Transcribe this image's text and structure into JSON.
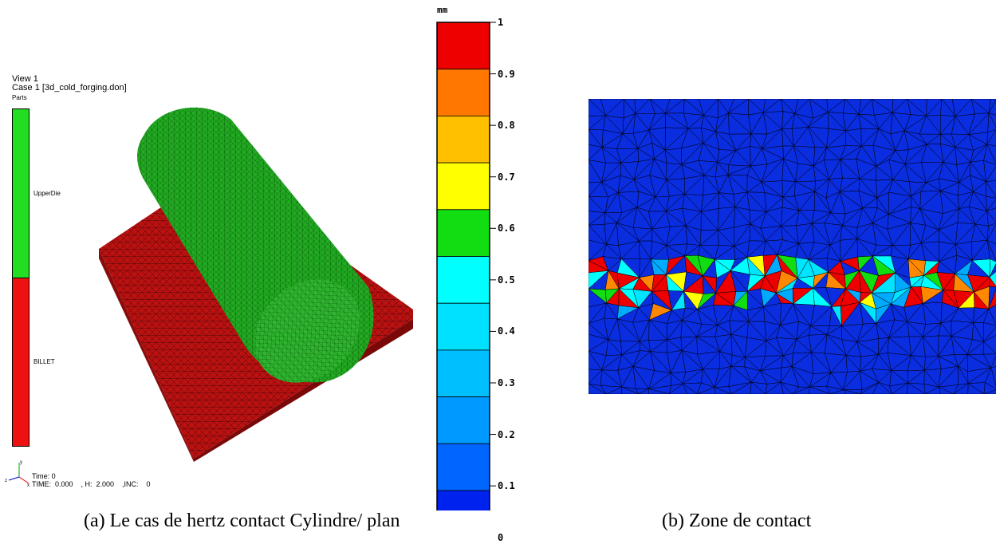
{
  "viewer": {
    "view_title": "View 1",
    "case_title": "Case 1  [3d_cold_forging.don]",
    "parts_label": "Parts",
    "parts": [
      {
        "name": "UpperDie",
        "color": "#22dd22"
      },
      {
        "name": "BILLET",
        "color": "#ee1111"
      }
    ],
    "time_line1": "Time: 0",
    "time_line2": "TIME:  0.000    , H:  2.000    ,INC:    0"
  },
  "colors": {
    "cylinder": "#22aa22",
    "billet": "#bb1111",
    "mesh_background": "#0a2de0"
  },
  "scale": {
    "unit": "mm",
    "ticks": [
      "1",
      "0.9",
      "0.8",
      "0.7",
      "0.6",
      "0.5",
      "0.4",
      "0.3",
      "0.2",
      "0.1",
      "0"
    ],
    "bands": [
      "#ee0000",
      "#ff7700",
      "#ffc000",
      "#ffff00",
      "#11dd11",
      "#00ffff",
      "#00e0ff",
      "#00bfff",
      "#0099ff",
      "#0066ff",
      "#0022ee"
    ]
  },
  "contact_colors": [
    "#ee0000",
    "#ffff00",
    "#00e5ff",
    "#11dd11",
    "#ff8800",
    "#00aaff",
    "#00ffff",
    "#ee0000",
    "#ee0000"
  ],
  "captions": {
    "a": "(a) Le cas de hertz contact Cylindre/ plan",
    "b": "(b) Zone de contact"
  }
}
